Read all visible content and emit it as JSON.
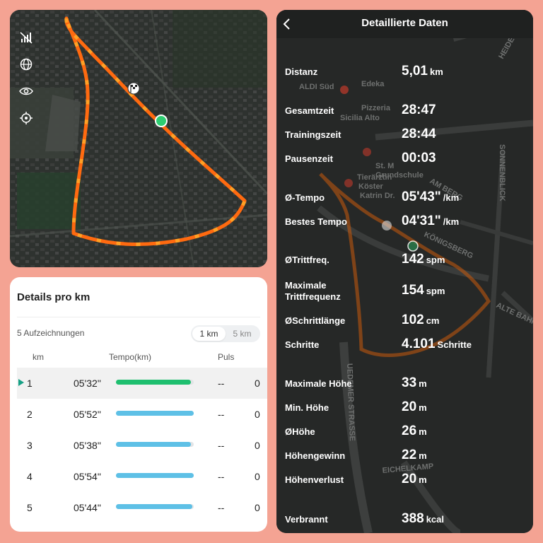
{
  "map_panel": {
    "tools": [
      {
        "icon": "signal-off-icon"
      },
      {
        "icon": "globe-icon"
      },
      {
        "icon": "eye-icon"
      },
      {
        "icon": "locate-icon"
      }
    ],
    "route_color": "#ff6a10",
    "start_marker_color": "#2ecc71"
  },
  "details": {
    "title": "Details pro km",
    "record_count": "5 Aufzeichnungen",
    "units": [
      {
        "label": "1 km",
        "active": true
      },
      {
        "label": "5 km",
        "active": false
      }
    ],
    "columns": {
      "km": "km",
      "pace": "Tempo(km)",
      "pulse": "Puls"
    },
    "rows": [
      {
        "km": "1",
        "pace": "05'32\"",
        "pulse": "--",
        "extra": "0",
        "bar": 0.96,
        "color": "#1fbf6f",
        "highlight": true
      },
      {
        "km": "2",
        "pace": "05'52\"",
        "pulse": "--",
        "extra": "0",
        "bar": 1.0,
        "color": "#5ec0e6",
        "highlight": false
      },
      {
        "km": "3",
        "pace": "05'38\"",
        "pulse": "--",
        "extra": "0",
        "bar": 0.96,
        "color": "#5ec0e6",
        "highlight": false
      },
      {
        "km": "4",
        "pace": "05'54\"",
        "pulse": "--",
        "extra": "0",
        "bar": 1.0,
        "color": "#5ec0e6",
        "highlight": false
      },
      {
        "km": "5",
        "pace": "05'44\"",
        "pulse": "--",
        "extra": "0",
        "bar": 0.98,
        "color": "#5ec0e6",
        "highlight": false
      }
    ]
  },
  "detail_panel": {
    "title": "Detaillierte Daten",
    "metrics": [
      {
        "label": "Distanz",
        "value": "5,01",
        "unit": "km"
      },
      {
        "label": "Gesamtzeit",
        "value": "28:47",
        "unit": ""
      },
      {
        "label": "Trainingszeit",
        "value": "28:44",
        "unit": ""
      },
      {
        "label": "Pausenzeit",
        "value": "00:03",
        "unit": ""
      },
      {
        "label": "Ø-Tempo",
        "value": "05'43\"",
        "unit": "/km"
      },
      {
        "label": "Bestes Tempo",
        "value": "04'31\"",
        "unit": "/km"
      },
      {
        "label": "ØTrittfreq.",
        "value": "142",
        "unit": "spm"
      },
      {
        "label": "Maximale Trittfrequenz",
        "value": "154",
        "unit": "spm"
      },
      {
        "label": "ØSchrittlänge",
        "value": "102",
        "unit": "cm"
      },
      {
        "label": "Schritte",
        "value": "4.101",
        "unit": "Schritte"
      },
      {
        "label": "Maximale Höhe",
        "value": "33",
        "unit": "m"
      },
      {
        "label": "Min. Höhe",
        "value": "20",
        "unit": "m"
      },
      {
        "label": "ØHöhe",
        "value": "26",
        "unit": "m"
      },
      {
        "label": "Höhengewinn",
        "value": "22",
        "unit": "m"
      },
      {
        "label": "Höhenverlust",
        "value": "20",
        "unit": "m"
      },
      {
        "label": "Verbrannt",
        "value": "388",
        "unit": "kcal"
      }
    ],
    "map_labels": [
      "ALDI Süd",
      "Edeka",
      "Pizzeria",
      "Sicilia Alto",
      "St. M",
      "Grundschule",
      "Tierärztin",
      "Köster",
      "Katrin Dr.",
      "SONNENBLICK",
      "AM BERG",
      "HEIDEHOFER",
      "ALTE BAHN",
      "UEDEMER STRASSE",
      "EICHELKAMP",
      "KÖNIGSBERG"
    ]
  }
}
